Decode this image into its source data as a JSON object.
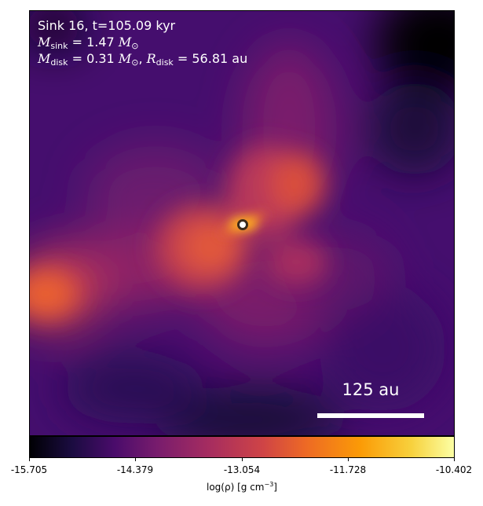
{
  "annotation": {
    "line1": "Sink 16, t=105.09 kyr",
    "m_sink_symbol": "M",
    "m_sink_sub": "sink",
    "m_sink_value": " = 1.47 ",
    "m_sun_symbol": "M",
    "m_sun_sub": "⊙",
    "m_disk_symbol": "M",
    "m_disk_sub": "disk",
    "m_disk_value": " = 0.31 ",
    "m_disk_sun_symbol": "M",
    "m_disk_sun_sub": "⊙",
    "comma": ", ",
    "r_disk_symbol": "R",
    "r_disk_sub": "disk",
    "r_disk_value": " = 56.81 au"
  },
  "scale_bar": {
    "label": "125 au"
  },
  "colorbar": {
    "colormap": "inferno",
    "ticks": [
      "-15.705",
      "-14.379",
      "-13.054",
      "-11.728",
      "-10.402"
    ],
    "label_main": "log(ρ) [g cm",
    "label_sup": "−3",
    "label_end": "]"
  },
  "colors": {
    "background": "#3a0a6a",
    "marker_fill": "#ffffff"
  }
}
